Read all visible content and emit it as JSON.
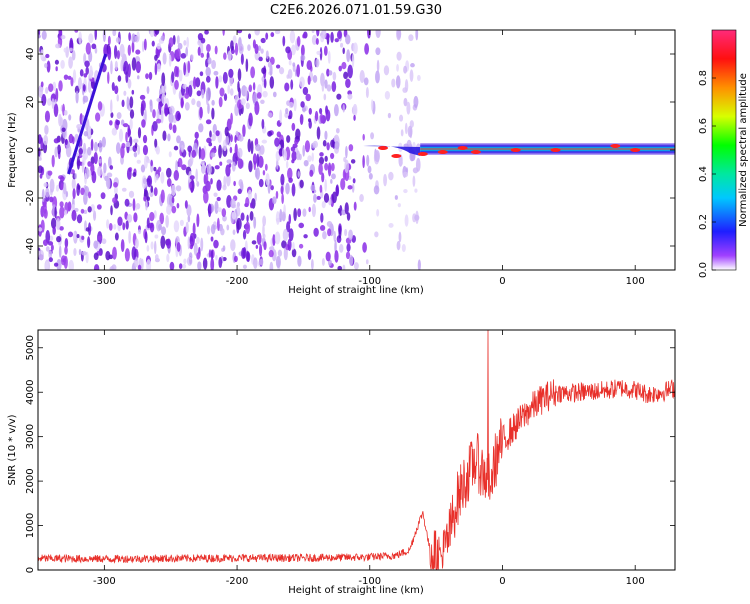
{
  "title": "C2E6.2026.071.01.59.G30",
  "top_panel": {
    "ylabel": "Frequency (Hz)",
    "xlabel": "Height of straight line (km)",
    "colorbar_label": "Normalized spectral amplitude"
  },
  "bottom_panel": {
    "ylabel": "SNR (10 * v/v)",
    "xlabel": "Height of straight line (km)"
  },
  "colors": {
    "snr_line": "#e8302a",
    "noise_dark": "#7a1fe0",
    "noise_light": "#d8c4f8"
  },
  "chart_data": [
    {
      "type": "heatmap",
      "title": "C2E6.2026.071.01.59.G30",
      "xlabel": "Height of straight line (km)",
      "ylabel": "Frequency (Hz)",
      "xlim": [
        -350,
        130
      ],
      "ylim": [
        -50,
        50
      ],
      "x_ticks": [
        -300,
        -200,
        -100,
        0,
        100
      ],
      "y_ticks": [
        -40,
        -20,
        0,
        20,
        40
      ],
      "colorbar": {
        "label": "Normalized spectral amplitude",
        "range": [
          0,
          1
        ],
        "ticks": [
          0.0,
          0.2,
          0.4,
          0.6,
          0.8
        ]
      },
      "features": {
        "noise_region_x": [
          -350,
          -62
        ],
        "direct_signal_line": {
          "x": [
            -327,
            -299
          ],
          "y": [
            -10,
            40
          ]
        },
        "carrier_track": {
          "x": [
            -100,
            130
          ],
          "y": 0
        },
        "gap_region_x": [
          -62,
          130
        ]
      }
    },
    {
      "type": "line",
      "xlabel": "Height of straight line (km)",
      "ylabel": "SNR (10 * v/v)",
      "xlim": [
        -350,
        130
      ],
      "ylim": [
        0,
        5400
      ],
      "x_ticks": [
        -300,
        -200,
        -100,
        0,
        100
      ],
      "y_ticks": [
        0,
        1000,
        2000,
        3000,
        4000,
        5000
      ],
      "series": [
        {
          "name": "SNR",
          "x": [
            -350,
            -300,
            -250,
            -200,
            -150,
            -100,
            -80,
            -70,
            -65,
            -60,
            -55,
            -50,
            -45,
            -40,
            -35,
            -30,
            -25,
            -20,
            -15,
            -10,
            -5,
            0,
            10,
            20,
            30,
            40,
            50,
            60,
            70,
            80,
            90,
            100,
            110,
            120,
            130
          ],
          "values": [
            260,
            250,
            260,
            270,
            270,
            290,
            330,
            450,
            900,
            1300,
            500,
            250,
            300,
            800,
            1500,
            1900,
            2200,
            2500,
            2200,
            2000,
            2500,
            2900,
            3250,
            3600,
            3850,
            4000,
            3980,
            4000,
            4020,
            4050,
            4100,
            4050,
            3950,
            4000,
            4100
          ]
        }
      ]
    }
  ]
}
